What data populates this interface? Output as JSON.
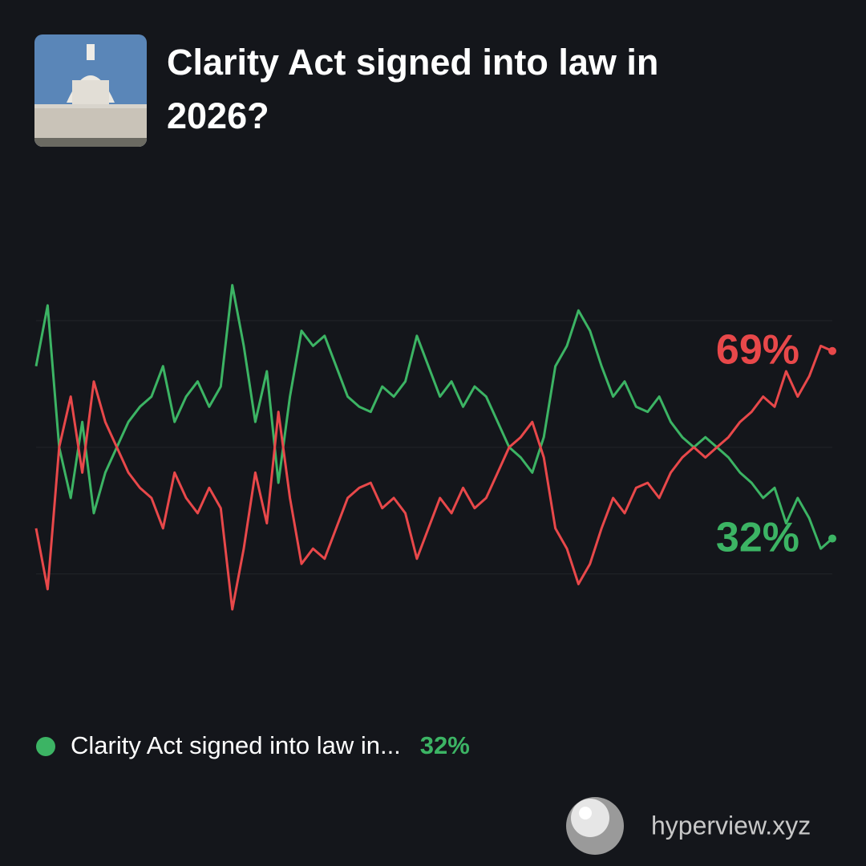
{
  "chart_data": {
    "type": "line",
    "title": "Clarity Act signed into law in 2026?",
    "ylim": [
      15,
      87
    ],
    "grid_lines": [
      25,
      50,
      75
    ],
    "series": [
      {
        "name": "Clarity Act signed into law in...",
        "color": "#3cb464",
        "end_label": "32%",
        "values": [
          66,
          78,
          50,
          40,
          55,
          37,
          45,
          50,
          55,
          58,
          60,
          66,
          55,
          60,
          63,
          58,
          62,
          82,
          70,
          55,
          65,
          43,
          60,
          73,
          70,
          72,
          66,
          60,
          58,
          57,
          62,
          60,
          63,
          72,
          66,
          60,
          63,
          58,
          62,
          60,
          55,
          50,
          48,
          45,
          52,
          66,
          70,
          77,
          73,
          66,
          60,
          63,
          58,
          57,
          60,
          55,
          52,
          50,
          52,
          50,
          48,
          45,
          43,
          40,
          42,
          35,
          40,
          36,
          30,
          32
        ]
      },
      {
        "color": "#e8484a",
        "end_label": "69%",
        "values": [
          34,
          22,
          50,
          60,
          45,
          63,
          55,
          50,
          45,
          42,
          40,
          34,
          45,
          40,
          37,
          42,
          38,
          18,
          30,
          45,
          35,
          57,
          40,
          27,
          30,
          28,
          34,
          40,
          42,
          43,
          38,
          40,
          37,
          28,
          34,
          40,
          37,
          42,
          38,
          40,
          45,
          50,
          52,
          55,
          48,
          34,
          30,
          23,
          27,
          34,
          40,
          37,
          42,
          43,
          40,
          45,
          48,
          50,
          48,
          50,
          52,
          55,
          57,
          60,
          58,
          65,
          60,
          64,
          70,
          69
        ]
      }
    ],
    "footer": "hyperview.xyz"
  }
}
